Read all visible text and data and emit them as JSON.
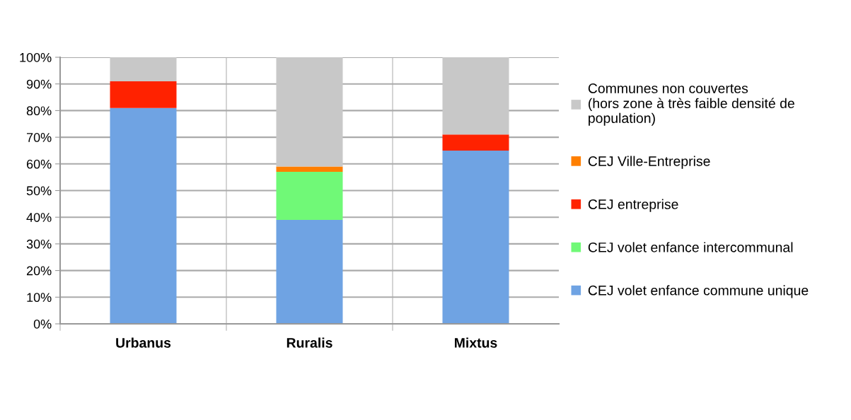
{
  "chart_data": {
    "type": "bar",
    "stacked": true,
    "categories": [
      "Urbanus",
      "Ruralis",
      "Mixtus"
    ],
    "series": [
      {
        "name": "CEJ volet enfance commune unique",
        "color": "#6fa3e3",
        "values": [
          81,
          39,
          65
        ]
      },
      {
        "name": "CEJ volet enfance intercommunal",
        "color": "#70f977",
        "values": [
          0,
          18,
          0
        ]
      },
      {
        "name": "CEJ entreprise",
        "color": "#ff2200",
        "values": [
          10,
          0,
          6
        ]
      },
      {
        "name": "CEJ Ville-Entreprise",
        "color": "#ff7f00",
        "values": [
          0,
          2,
          0
        ]
      },
      {
        "name": "Communes non couvertes\n(hors zone à très faible densité de\npopulation)",
        "color": "#c8c8c8",
        "values": [
          9,
          41,
          29
        ]
      }
    ],
    "ylim": [
      0,
      100
    ],
    "yticks": [
      {
        "value": 0,
        "label": "0%"
      },
      {
        "value": 10,
        "label": "10%"
      },
      {
        "value": 20,
        "label": "20%"
      },
      {
        "value": 30,
        "label": "30%"
      },
      {
        "value": 40,
        "label": "40%"
      },
      {
        "value": 50,
        "label": "50%"
      },
      {
        "value": 60,
        "label": "60%"
      },
      {
        "value": 70,
        "label": "70%"
      },
      {
        "value": 80,
        "label": "80%"
      },
      {
        "value": 90,
        "label": "90%"
      },
      {
        "value": 100,
        "label": "100%"
      }
    ],
    "grid": true,
    "legend": "right"
  }
}
